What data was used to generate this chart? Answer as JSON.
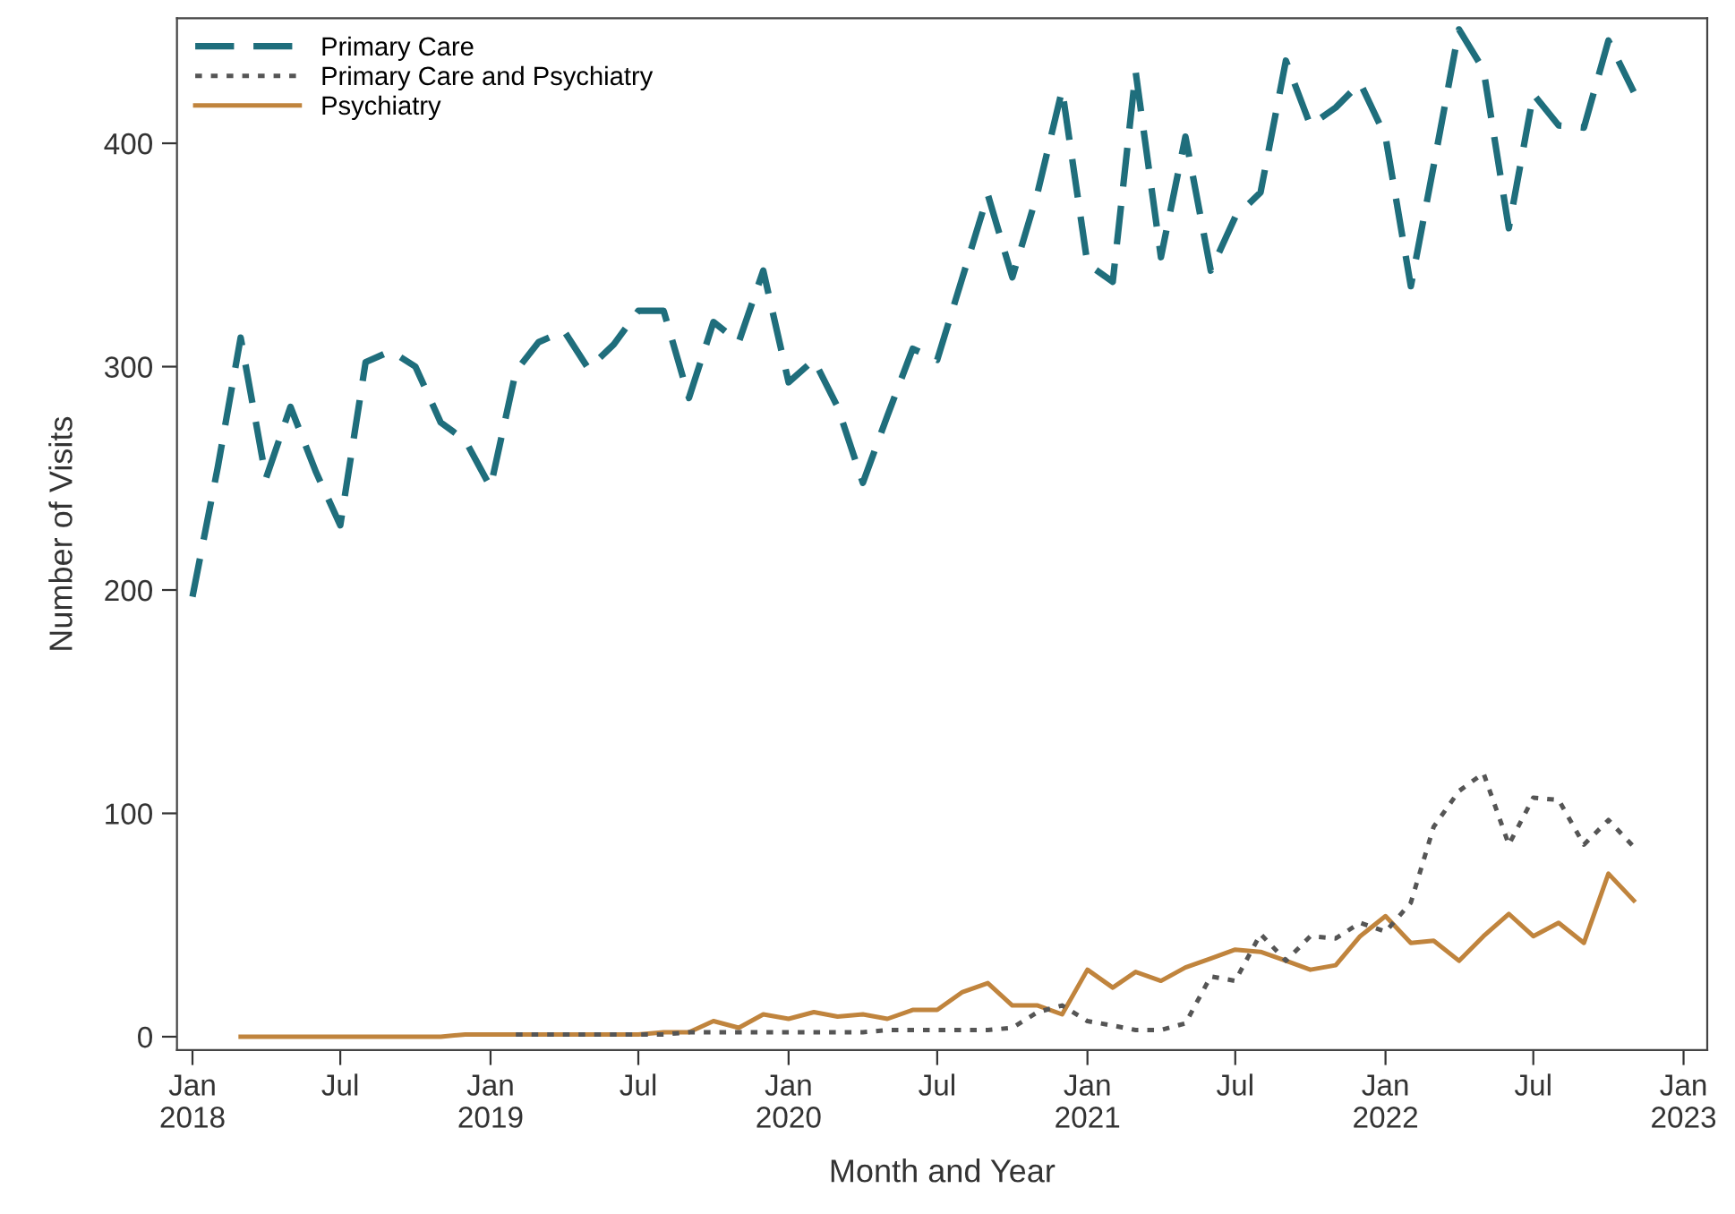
{
  "chart_data": {
    "type": "line",
    "xlabel": "Month and Year",
    "ylabel": "Number of Visits",
    "xlim": [
      "2017-12-13",
      "2023-01-30"
    ],
    "ylim": [
      -6,
      456
    ],
    "xticks": [
      {
        "value": "2018-01",
        "label": "Jan\n2018"
      },
      {
        "value": "2018-07",
        "label": "Jul"
      },
      {
        "value": "2019-01",
        "label": "Jan\n2019"
      },
      {
        "value": "2019-07",
        "label": "Jul"
      },
      {
        "value": "2020-01",
        "label": "Jan\n2020"
      },
      {
        "value": "2020-07",
        "label": "Jul"
      },
      {
        "value": "2021-01",
        "label": "Jan\n2021"
      },
      {
        "value": "2021-07",
        "label": "Jul"
      },
      {
        "value": "2022-01",
        "label": "Jan\n2022"
      },
      {
        "value": "2022-07",
        "label": "Jul"
      },
      {
        "value": "2023-01",
        "label": "Jan\n2023"
      }
    ],
    "yticks": [
      0,
      100,
      200,
      300,
      400
    ],
    "grid": false,
    "legend": "top left",
    "series": [
      {
        "name": "Primary Care",
        "color": "#1f6e7c",
        "line_style": "dashed",
        "x": [
          "2018-01",
          "2018-02",
          "2018-03",
          "2018-04",
          "2018-05",
          "2018-06",
          "2018-07",
          "2018-08",
          "2018-09",
          "2018-10",
          "2018-11",
          "2018-12",
          "2019-01",
          "2019-02",
          "2019-03",
          "2019-04",
          "2019-05",
          "2019-06",
          "2019-07",
          "2019-08",
          "2019-09",
          "2019-10",
          "2019-11",
          "2019-12",
          "2020-01",
          "2020-02",
          "2020-03",
          "2020-04",
          "2020-05",
          "2020-06",
          "2020-07",
          "2020-08",
          "2020-09",
          "2020-10",
          "2020-11",
          "2020-12",
          "2021-01",
          "2021-02",
          "2021-03",
          "2021-04",
          "2021-05",
          "2021-06",
          "2021-07",
          "2021-08",
          "2021-09",
          "2021-10",
          "2021-11",
          "2021-12",
          "2022-01",
          "2022-02",
          "2022-03",
          "2022-04",
          "2022-05",
          "2022-06",
          "2022-07",
          "2022-08",
          "2022-09",
          "2022-10",
          "2022-11"
        ],
        "values": [
          197,
          255,
          313,
          250,
          282,
          253,
          229,
          302,
          307,
          300,
          275,
          267,
          246,
          298,
          311,
          316,
          299,
          310,
          325,
          325,
          286,
          320,
          311,
          343,
          293,
          303,
          282,
          248,
          278,
          308,
          303,
          340,
          377,
          340,
          378,
          424,
          346,
          338,
          432,
          349,
          403,
          343,
          367,
          378,
          437,
          408,
          416,
          427,
          403,
          336,
          390,
          451,
          433,
          362,
          422,
          408,
          407,
          446,
          423
        ]
      },
      {
        "name": "Primary Care and Psychiatry",
        "color": "#555555",
        "line_style": "dotted",
        "x": [
          "2019-02",
          "2019-03",
          "2019-04",
          "2019-05",
          "2019-06",
          "2019-07",
          "2019-08",
          "2019-09",
          "2019-10",
          "2019-11",
          "2019-12",
          "2020-01",
          "2020-02",
          "2020-03",
          "2020-04",
          "2020-05",
          "2020-06",
          "2020-07",
          "2020-08",
          "2020-09",
          "2020-10",
          "2020-11",
          "2020-12",
          "2021-01",
          "2021-02",
          "2021-03",
          "2021-04",
          "2021-05",
          "2021-06",
          "2021-07",
          "2021-08",
          "2021-09",
          "2021-10",
          "2021-11",
          "2021-12",
          "2022-01",
          "2022-02",
          "2022-03",
          "2022-04",
          "2022-05",
          "2022-06",
          "2022-07",
          "2022-08",
          "2022-09",
          "2022-10",
          "2022-11"
        ],
        "values": [
          1,
          1,
          1,
          1,
          1,
          1,
          1,
          2,
          2,
          2,
          2,
          2,
          2,
          2,
          2,
          3,
          3,
          3,
          3,
          3,
          4,
          11,
          14,
          7,
          5,
          3,
          3,
          6,
          27,
          25,
          46,
          34,
          45,
          44,
          51,
          47,
          60,
          94,
          110,
          118,
          86,
          107,
          106,
          86,
          97,
          85
        ]
      },
      {
        "name": "Psychiatry",
        "color": "#c0843d",
        "line_style": "solid",
        "x": [
          "2018-03",
          "2018-04",
          "2018-05",
          "2018-06",
          "2018-07",
          "2018-08",
          "2018-09",
          "2018-10",
          "2018-11",
          "2018-12",
          "2019-01",
          "2019-02",
          "2019-03",
          "2019-04",
          "2019-05",
          "2019-06",
          "2019-07",
          "2019-08",
          "2019-09",
          "2019-10",
          "2019-11",
          "2019-12",
          "2020-01",
          "2020-02",
          "2020-03",
          "2020-04",
          "2020-05",
          "2020-06",
          "2020-07",
          "2020-08",
          "2020-09",
          "2020-10",
          "2020-11",
          "2020-12",
          "2021-01",
          "2021-02",
          "2021-03",
          "2021-04",
          "2021-05",
          "2021-06",
          "2021-07",
          "2021-08",
          "2021-09",
          "2021-10",
          "2021-11",
          "2021-12",
          "2022-01",
          "2022-02",
          "2022-03",
          "2022-04",
          "2022-05",
          "2022-06",
          "2022-07",
          "2022-08",
          "2022-09",
          "2022-10",
          "2022-11"
        ],
        "values": [
          0,
          0,
          0,
          0,
          0,
          0,
          0,
          0,
          0,
          1,
          1,
          1,
          1,
          1,
          1,
          1,
          1,
          2,
          2,
          7,
          4,
          10,
          8,
          11,
          9,
          10,
          8,
          12,
          12,
          20,
          24,
          14,
          14,
          10,
          30,
          22,
          29,
          25,
          31,
          35,
          39,
          38,
          34,
          30,
          32,
          45,
          54,
          42,
          43,
          34,
          45,
          55,
          45,
          51,
          42,
          73,
          61
        ]
      }
    ]
  }
}
